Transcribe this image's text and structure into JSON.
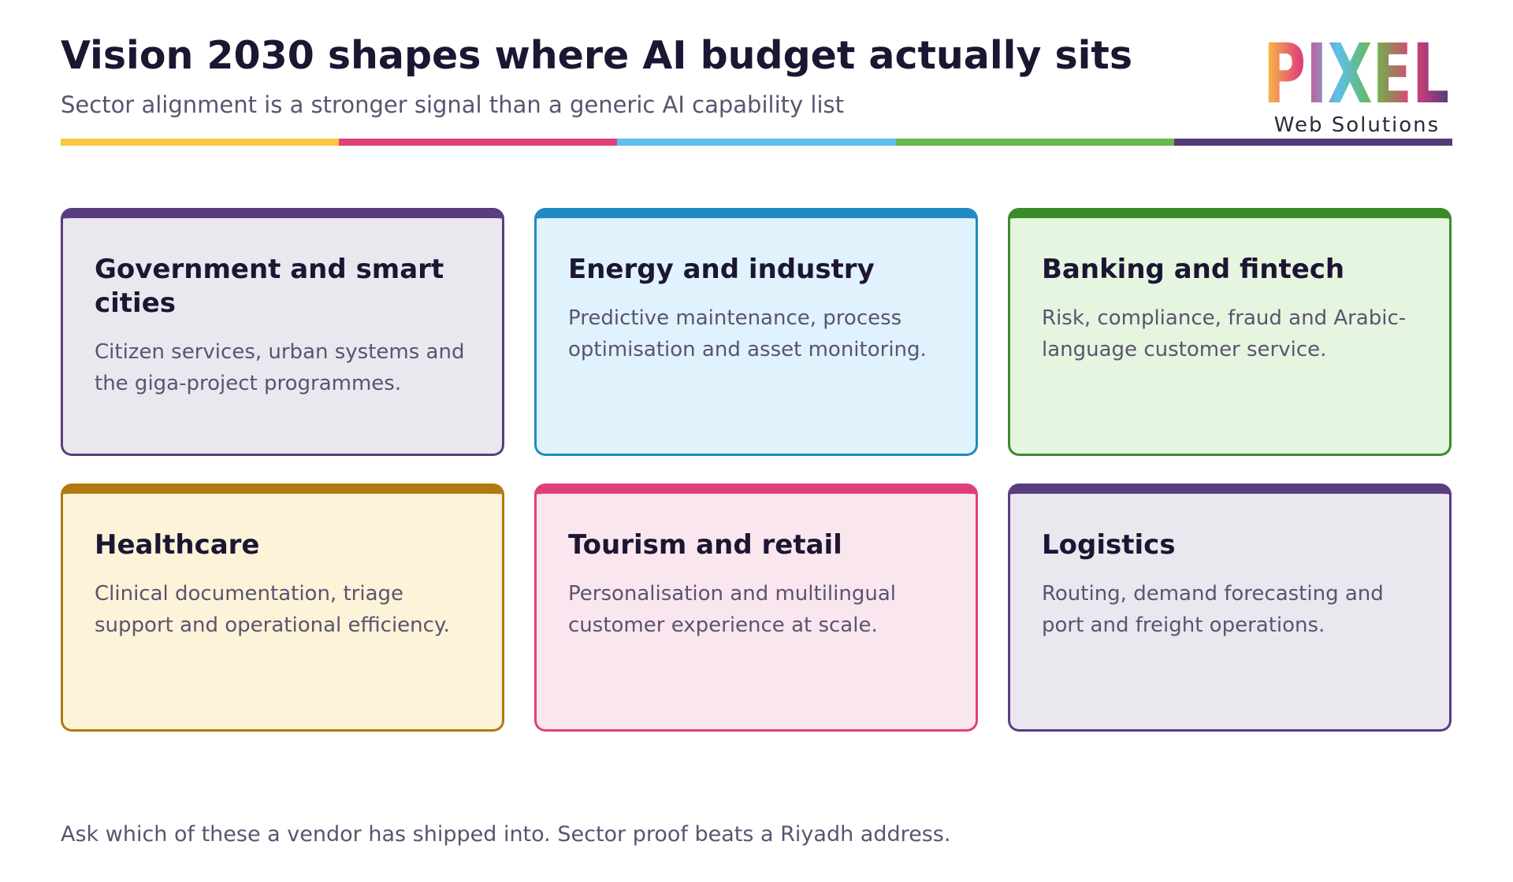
{
  "header": {
    "title": "Vision 2030 shapes where AI budget actually sits",
    "subtitle": "Sector alignment is a stronger signal than a generic AI capability list"
  },
  "logo": {
    "name": "PIXEL",
    "tagline": "Web Solutions"
  },
  "cards": [
    {
      "title": "Government and smart cities",
      "text": "Citizen services, urban systems and the giga-project programmes."
    },
    {
      "title": "Energy and industry",
      "text": "Predictive maintenance, process optimisation and asset monitoring."
    },
    {
      "title": "Banking and fintech",
      "text": "Risk, compliance, fraud and Arabic-language customer service."
    },
    {
      "title": "Healthcare",
      "text": "Clinical documentation, triage support and operational efficiency."
    },
    {
      "title": "Tourism and retail",
      "text": "Personalisation and multilingual customer experience at scale."
    },
    {
      "title": "Logistics",
      "text": "Routing, demand forecasting and port and freight operations."
    }
  ],
  "footer": "Ask which of these a vendor has shipped into. Sector proof beats a Riyadh address."
}
